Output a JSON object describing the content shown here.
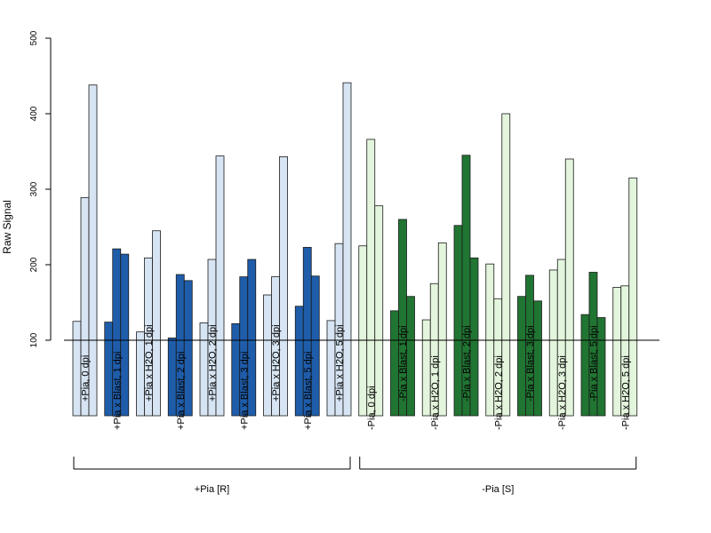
{
  "chart_data": {
    "type": "bar",
    "ylabel": "Raw Signal",
    "xlabel": "",
    "title": "",
    "baseline": 100,
    "ylim": [
      0,
      500
    ],
    "yticks": [
      100,
      200,
      300,
      400,
      500
    ],
    "categories": [
      "+Pia, 0 dpi",
      "+Pia x Blast, 1 dpi",
      "+Pia x H2O, 1 dpi",
      "+Pia x Blast, 2 dpi",
      "+Pia x H2O, 2 dpi",
      "+Pia x Blast, 3 dpi",
      "+Pia x H2O, 3 dpi",
      "+Pia x Blast, 5 dpi",
      "+Pia x H2O, 5 dpi",
      "-Pia, 0 dpi",
      "-Pia x Blast, 1 dpi",
      "-Pia x H2O, 1 dpi",
      "-Pia x Blast, 2 dpi",
      "-Pia x H2O, 2 dpi",
      "-Pia x Blast, 3 dpi",
      "-Pia x H2O, 3 dpi",
      "-Pia x Blast, 5 dpi",
      "-Pia x H2O, 5 dpi"
    ],
    "values": [
      [
        125,
        289,
        438
      ],
      [
        124,
        221,
        214
      ],
      [
        111,
        209,
        245
      ],
      [
        103,
        187,
        179
      ],
      [
        123,
        207,
        344
      ],
      [
        122,
        184,
        207
      ],
      [
        160,
        184,
        343
      ],
      [
        145,
        223,
        185
      ],
      [
        126,
        228,
        441
      ],
      [
        225,
        366,
        278
      ],
      [
        139,
        260,
        158
      ],
      [
        127,
        175,
        229
      ],
      [
        252,
        345,
        209
      ],
      [
        201,
        155,
        400
      ],
      [
        158,
        186,
        152
      ],
      [
        193,
        207,
        340
      ],
      [
        134,
        190,
        130
      ],
      [
        170,
        172,
        315
      ]
    ],
    "colors": [
      "#d6e4f3",
      "#1f5dab",
      "#d6e4f3",
      "#1f5dab",
      "#d6e4f3",
      "#1f5dab",
      "#d6e4f3",
      "#1f5dab",
      "#d6e4f3",
      "#e3f5dc",
      "#217532",
      "#e3f5dc",
      "#217532",
      "#e3f5dc",
      "#217532",
      "#e3f5dc",
      "#217532",
      "#e3f5dc"
    ],
    "groups": [
      {
        "label": "+Pia [R]",
        "from": 0,
        "to": 8
      },
      {
        "label": "-Pia [S]",
        "from": 9,
        "to": 17
      }
    ]
  }
}
